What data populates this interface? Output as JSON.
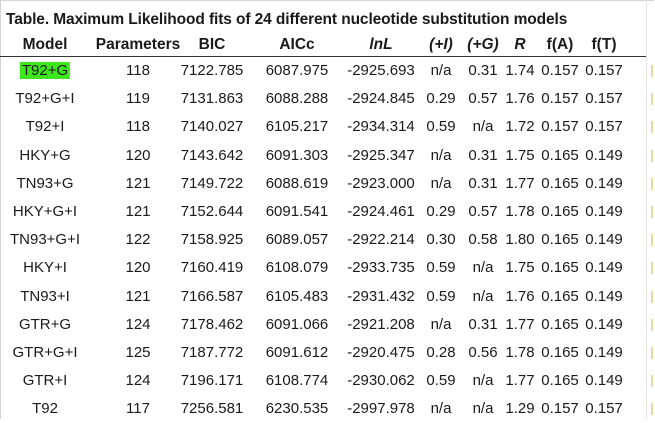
{
  "table": {
    "caption": "Table. Maximum Likelihood fits of 24 different nucleotide substitution models",
    "columns": [
      {
        "label": "Model",
        "style": "bold"
      },
      {
        "label": "Parameters",
        "style": "bold"
      },
      {
        "label": "BIC",
        "style": "bold"
      },
      {
        "label": "AICc",
        "style": "bold"
      },
      {
        "label": "lnL",
        "style": "bold-italic"
      },
      {
        "label": "(+I)",
        "style": "bold-italic"
      },
      {
        "label": "(+G)",
        "style": "bold-italic"
      },
      {
        "label": "R",
        "style": "bold-italic"
      },
      {
        "label": "f(A)",
        "style": "bold"
      },
      {
        "label": "f(T)",
        "style": "bold"
      }
    ],
    "rows": [
      {
        "model": "T92+G",
        "params": "118",
        "bic": "7122.785",
        "aicc": "6087.975",
        "lnl": "-2925.693",
        "inv": "n/a",
        "gamma": "0.31",
        "r": "1.74",
        "fa": "0.157",
        "ft": "0.157",
        "highlighted": true
      },
      {
        "model": "T92+G+I",
        "params": "119",
        "bic": "7131.863",
        "aicc": "6088.288",
        "lnl": "-2924.845",
        "inv": "0.29",
        "gamma": "0.57",
        "r": "1.76",
        "fa": "0.157",
        "ft": "0.157"
      },
      {
        "model": "T92+I",
        "params": "118",
        "bic": "7140.027",
        "aicc": "6105.217",
        "lnl": "-2934.314",
        "inv": "0.59",
        "gamma": "n/a",
        "r": "1.72",
        "fa": "0.157",
        "ft": "0.157"
      },
      {
        "model": "HKY+G",
        "params": "120",
        "bic": "7143.642",
        "aicc": "6091.303",
        "lnl": "-2925.347",
        "inv": "n/a",
        "gamma": "0.31",
        "r": "1.75",
        "fa": "0.165",
        "ft": "0.149"
      },
      {
        "model": "TN93+G",
        "params": "121",
        "bic": "7149.722",
        "aicc": "6088.619",
        "lnl": "-2923.000",
        "inv": "n/a",
        "gamma": "0.31",
        "r": "1.77",
        "fa": "0.165",
        "ft": "0.149"
      },
      {
        "model": "HKY+G+I",
        "params": "121",
        "bic": "7152.644",
        "aicc": "6091.541",
        "lnl": "-2924.461",
        "inv": "0.29",
        "gamma": "0.57",
        "r": "1.78",
        "fa": "0.165",
        "ft": "0.149"
      },
      {
        "model": "TN93+G+I",
        "params": "122",
        "bic": "7158.925",
        "aicc": "6089.057",
        "lnl": "-2922.214",
        "inv": "0.30",
        "gamma": "0.58",
        "r": "1.80",
        "fa": "0.165",
        "ft": "0.149"
      },
      {
        "model": "HKY+I",
        "params": "120",
        "bic": "7160.419",
        "aicc": "6108.079",
        "lnl": "-2933.735",
        "inv": "0.59",
        "gamma": "n/a",
        "r": "1.75",
        "fa": "0.165",
        "ft": "0.149"
      },
      {
        "model": "TN93+I",
        "params": "121",
        "bic": "7166.587",
        "aicc": "6105.483",
        "lnl": "-2931.432",
        "inv": "0.59",
        "gamma": "n/a",
        "r": "1.76",
        "fa": "0.165",
        "ft": "0.149"
      },
      {
        "model": "GTR+G",
        "params": "124",
        "bic": "7178.462",
        "aicc": "6091.066",
        "lnl": "-2921.208",
        "inv": "n/a",
        "gamma": "0.31",
        "r": "1.77",
        "fa": "0.165",
        "ft": "0.149"
      },
      {
        "model": "GTR+G+I",
        "params": "125",
        "bic": "7187.772",
        "aicc": "6091.612",
        "lnl": "-2920.475",
        "inv": "0.28",
        "gamma": "0.56",
        "r": "1.78",
        "fa": "0.165",
        "ft": "0.149"
      },
      {
        "model": "GTR+I",
        "params": "124",
        "bic": "7196.171",
        "aicc": "6108.774",
        "lnl": "-2930.062",
        "inv": "0.59",
        "gamma": "n/a",
        "r": "1.77",
        "fa": "0.165",
        "ft": "0.149"
      },
      {
        "model": "T92",
        "params": "117",
        "bic": "7256.581",
        "aicc": "6230.535",
        "lnl": "-2997.978",
        "inv": "n/a",
        "gamma": "n/a",
        "r": "1.29",
        "fa": "0.157",
        "ft": "0.157"
      }
    ]
  },
  "colors": {
    "highlight": "#3ee61e",
    "text": "#1a1a1a",
    "rule": "#333333"
  }
}
